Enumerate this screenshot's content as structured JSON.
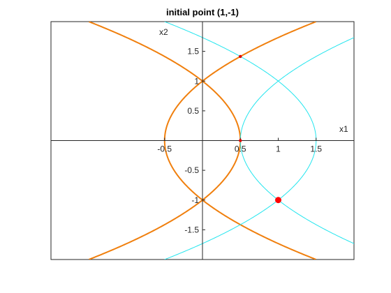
{
  "chart_data": {
    "type": "line",
    "title": "initial point (1,-1)",
    "xlabel": "x1",
    "ylabel": "x2",
    "xlim": [
      -2,
      2
    ],
    "ylim": [
      -2,
      2
    ],
    "grid": false,
    "axes_through_origin": true,
    "x_ticks": [
      {
        "value": -0.5,
        "label": "-0.5"
      },
      {
        "value": 0.5,
        "label": "0.5"
      },
      {
        "value": 1,
        "label": "1"
      },
      {
        "value": 1.5,
        "label": "1.5"
      }
    ],
    "y_ticks": [
      {
        "value": 1.5,
        "label": "1.5"
      },
      {
        "value": 1,
        "label": "1"
      },
      {
        "value": 0.5,
        "label": "0.5"
      },
      {
        "value": -0.5,
        "label": "-0.5"
      },
      {
        "value": -1,
        "label": "-1"
      },
      {
        "value": -1.5,
        "label": "-1.5"
      }
    ],
    "series": [
      {
        "role": "curve",
        "color": "#f07f0d",
        "width": 2,
        "equation": "x1 = 0.5 - x2^2/2",
        "t_range": [
          -2,
          2
        ]
      },
      {
        "role": "curve",
        "color": "#f07f0d",
        "width": 2,
        "equation": "x1 = x2^2/2 - 0.5",
        "t_range": [
          -2,
          2
        ]
      },
      {
        "role": "curve",
        "color": "#22e5ee",
        "width": 1,
        "equation": "x1 = 1.5 - x2^2/2",
        "t_range": [
          -2,
          2
        ]
      },
      {
        "role": "curve",
        "color": "#22e5ee",
        "width": 1,
        "equation": "x1 = 0.5 + x2^2/2",
        "t_range": [
          -2,
          2
        ]
      }
    ],
    "points": [
      {
        "x": 1,
        "y": -1,
        "color": "#ff0000",
        "size": "large"
      },
      {
        "x": 0.5,
        "y": 1.414,
        "color": "#dd0000",
        "size": "small"
      },
      {
        "x": 0.5,
        "y": 0,
        "color": "#dd0000",
        "size": "small"
      }
    ]
  }
}
